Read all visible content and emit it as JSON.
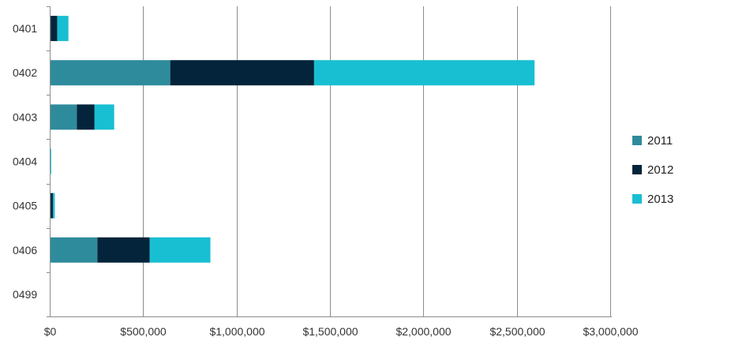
{
  "chart_data": {
    "type": "bar",
    "orientation": "horizontal",
    "stacked": true,
    "title": "",
    "xlabel": "",
    "ylabel": "",
    "categories": [
      "0401",
      "0402",
      "0403",
      "0404",
      "0405",
      "0406",
      "0499"
    ],
    "series": [
      {
        "name": "2011",
        "color": "#2e8b9c",
        "values": [
          5000,
          645000,
          145000,
          2000,
          5000,
          255000,
          0
        ]
      },
      {
        "name": "2012",
        "color": "#03243a",
        "values": [
          35000,
          770000,
          95000,
          0,
          12000,
          280000,
          0
        ]
      },
      {
        "name": "2013",
        "color": "#18bfd2",
        "values": [
          60000,
          1180000,
          105000,
          6000,
          10000,
          325000,
          0
        ]
      }
    ],
    "xlim": [
      0,
      3000000
    ],
    "x_ticks": [
      0,
      500000,
      1000000,
      1500000,
      2000000,
      2500000,
      3000000
    ],
    "x_tick_labels": [
      "$0",
      "$500,000",
      "$1,000,000",
      "$1,500,000",
      "$2,000,000",
      "$2,500,000",
      "$3,000,000"
    ],
    "grid": true,
    "legend": {
      "position": "right",
      "entries": [
        "2011",
        "2012",
        "2013"
      ]
    }
  }
}
